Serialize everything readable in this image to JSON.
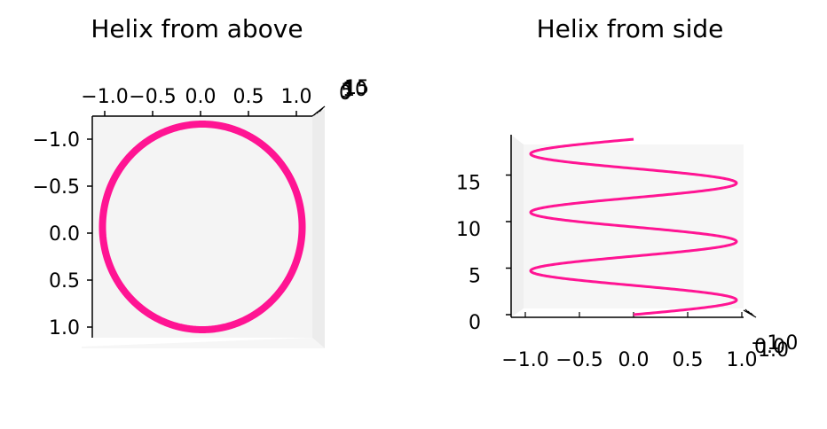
{
  "colors": {
    "line": "#ff1493",
    "pane": "#f4f4f4",
    "pane_side": "#ececec",
    "axis": "#000000"
  },
  "chart_data": [
    {
      "type": "line",
      "projection": "3d-top-view",
      "title": "Helix from above",
      "xlabel": "",
      "ylabel": "",
      "xlim": [
        -1.0,
        1.0
      ],
      "ylim": [
        -1.0,
        1.0
      ],
      "zlim": [
        0,
        18.85
      ],
      "x_ticks": [
        "−1.0",
        "−0.5",
        "0.0",
        "0.5",
        "1.0"
      ],
      "y_ticks": [
        "−1.0",
        "−0.5",
        "0.0",
        "0.5",
        "1.0"
      ],
      "z_ticks": [
        "0",
        "5",
        "10",
        "15"
      ],
      "series": [
        {
          "t_range": [
            0,
            18.85
          ],
          "x": "cos(t)",
          "y": "sin(t)",
          "z": "t",
          "points": 600
        }
      ]
    },
    {
      "type": "line",
      "projection": "3d-side-view",
      "title": "Helix from side",
      "xlabel": "",
      "ylabel": "",
      "xlim": [
        -1.0,
        1.0
      ],
      "ylim": [
        -1.0,
        1.0
      ],
      "zlim": [
        0,
        18.85
      ],
      "x_ticks": [
        "−1.0",
        "−0.5",
        "0.0",
        "0.5",
        "1.0"
      ],
      "y_ticks": [
        "−1.0",
        "0.0",
        "1.0"
      ],
      "z_ticks": [
        "0",
        "5",
        "10",
        "15"
      ],
      "series": [
        {
          "t_range": [
            0,
            18.85
          ],
          "x": "cos(t)",
          "y": "sin(t)",
          "z": "t",
          "points": 600
        }
      ]
    }
  ]
}
